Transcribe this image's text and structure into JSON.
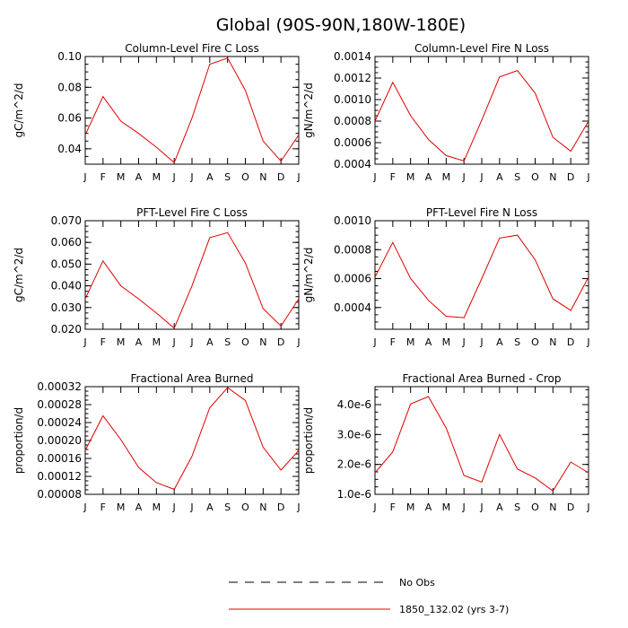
{
  "figure_title": "Global (90S-90N,180W-180E)",
  "legend": [
    {
      "label": "No Obs",
      "style": "dashed",
      "color": "#000000"
    },
    {
      "label": "1850_132.02 (yrs 3-7)",
      "style": "solid",
      "color": "#e00000"
    }
  ],
  "colors": {
    "series": "#e00000",
    "axis": "#000000",
    "background": "#ffffff"
  },
  "chart_data": [
    {
      "type": "line",
      "title": "Column-Level Fire C Loss",
      "ylabel": "gC/m^2/d",
      "categories": [
        "J",
        "F",
        "M",
        "A",
        "M",
        "J",
        "J",
        "A",
        "S",
        "O",
        "N",
        "D",
        "J"
      ],
      "ylim": [
        0.03,
        0.1
      ],
      "yticks": [
        0.04,
        0.06,
        0.08,
        0.1
      ],
      "ytick_labels": [
        "0.04",
        "0.06",
        "0.08",
        "0.10"
      ],
      "series": [
        {
          "values": [
            0.049,
            0.074,
            0.058,
            0.05,
            0.041,
            0.031,
            0.06,
            0.095,
            0.099,
            0.078,
            0.045,
            0.032,
            0.049
          ]
        }
      ]
    },
    {
      "type": "line",
      "title": "Column-Level Fire N Loss",
      "ylabel": "gN/m^2/d",
      "categories": [
        "J",
        "F",
        "M",
        "A",
        "M",
        "J",
        "J",
        "A",
        "S",
        "O",
        "N",
        "D",
        "J"
      ],
      "ylim": [
        0.0004,
        0.0014
      ],
      "yticks": [
        0.0004,
        0.0006,
        0.0008,
        0.001,
        0.0012,
        0.0014
      ],
      "ytick_labels": [
        "0.0004",
        "0.0006",
        "0.0008",
        "0.0010",
        "0.0012",
        "0.0014"
      ],
      "series": [
        {
          "values": [
            0.0008,
            0.00116,
            0.00085,
            0.00063,
            0.00048,
            0.00043,
            0.00081,
            0.00121,
            0.00127,
            0.00106,
            0.00065,
            0.00052,
            0.0008
          ]
        }
      ]
    },
    {
      "type": "line",
      "title": "PFT-Level Fire C Loss",
      "ylabel": "gC/m^2/d",
      "categories": [
        "J",
        "F",
        "M",
        "A",
        "M",
        "J",
        "J",
        "A",
        "S",
        "O",
        "N",
        "D",
        "J"
      ],
      "ylim": [
        0.02,
        0.07
      ],
      "yticks": [
        0.02,
        0.03,
        0.04,
        0.05,
        0.06,
        0.07
      ],
      "ytick_labels": [
        "0.020",
        "0.030",
        "0.040",
        "0.050",
        "0.060",
        "0.070"
      ],
      "series": [
        {
          "values": [
            0.034,
            0.0515,
            0.04,
            0.034,
            0.0275,
            0.0205,
            0.04,
            0.0622,
            0.0645,
            0.0505,
            0.0295,
            0.0215,
            0.034
          ]
        }
      ]
    },
    {
      "type": "line",
      "title": "PFT-Level Fire N Loss",
      "ylabel": "gN/m^2/d",
      "categories": [
        "J",
        "F",
        "M",
        "A",
        "M",
        "J",
        "J",
        "A",
        "S",
        "O",
        "N",
        "D",
        "J"
      ],
      "ylim": [
        0.00025,
        0.001
      ],
      "yticks": [
        0.0004,
        0.0006,
        0.0008,
        0.001
      ],
      "ytick_labels": [
        "0.0004",
        "0.0006",
        "0.0008",
        "0.0010"
      ],
      "series": [
        {
          "values": [
            0.00061,
            0.00085,
            0.0006,
            0.00045,
            0.00034,
            0.00033,
            0.0006,
            0.00088,
            0.0009,
            0.00073,
            0.00046,
            0.00038,
            0.00061
          ]
        }
      ]
    },
    {
      "type": "line",
      "title": "Fractional Area Burned",
      "ylabel": "proportion/d",
      "categories": [
        "J",
        "F",
        "M",
        "A",
        "M",
        "J",
        "J",
        "A",
        "S",
        "O",
        "N",
        "D",
        "J"
      ],
      "ylim": [
        8e-05,
        0.00032
      ],
      "yticks": [
        8e-05,
        0.00012,
        0.00016,
        0.0002,
        0.00024,
        0.00028,
        0.00032
      ],
      "ytick_labels": [
        "0.00008",
        "0.00012",
        "0.00016",
        "0.00020",
        "0.00024",
        "0.00028",
        "0.00032"
      ],
      "series": [
        {
          "values": [
            0.000178,
            0.000255,
            0.000202,
            0.00014,
            0.000106,
            9.1e-05,
            0.000165,
            0.000273,
            0.000318,
            0.000289,
            0.000185,
            0.000134,
            0.000178
          ]
        }
      ]
    },
    {
      "type": "line",
      "title": "Fractional Area Burned - Crop",
      "ylabel": "proportion/d",
      "categories": [
        "J",
        "F",
        "M",
        "A",
        "M",
        "J",
        "J",
        "A",
        "S",
        "O",
        "N",
        "D",
        "J"
      ],
      "ylim": [
        1e-06,
        4.6e-06
      ],
      "yticks": [
        1e-06,
        2e-06,
        3e-06,
        4e-06
      ],
      "ytick_labels": [
        "1.0e-6",
        "2.0e-6",
        "3.0e-6",
        "4.0e-6"
      ],
      "series": [
        {
          "values": [
            1.72e-06,
            2.42e-06,
            4.02e-06,
            4.27e-06,
            3.22e-06,
            1.63e-06,
            1.41e-06,
            3e-06,
            1.85e-06,
            1.55e-06,
            1.11e-06,
            2.08e-06,
            1.72e-06
          ]
        }
      ]
    }
  ]
}
